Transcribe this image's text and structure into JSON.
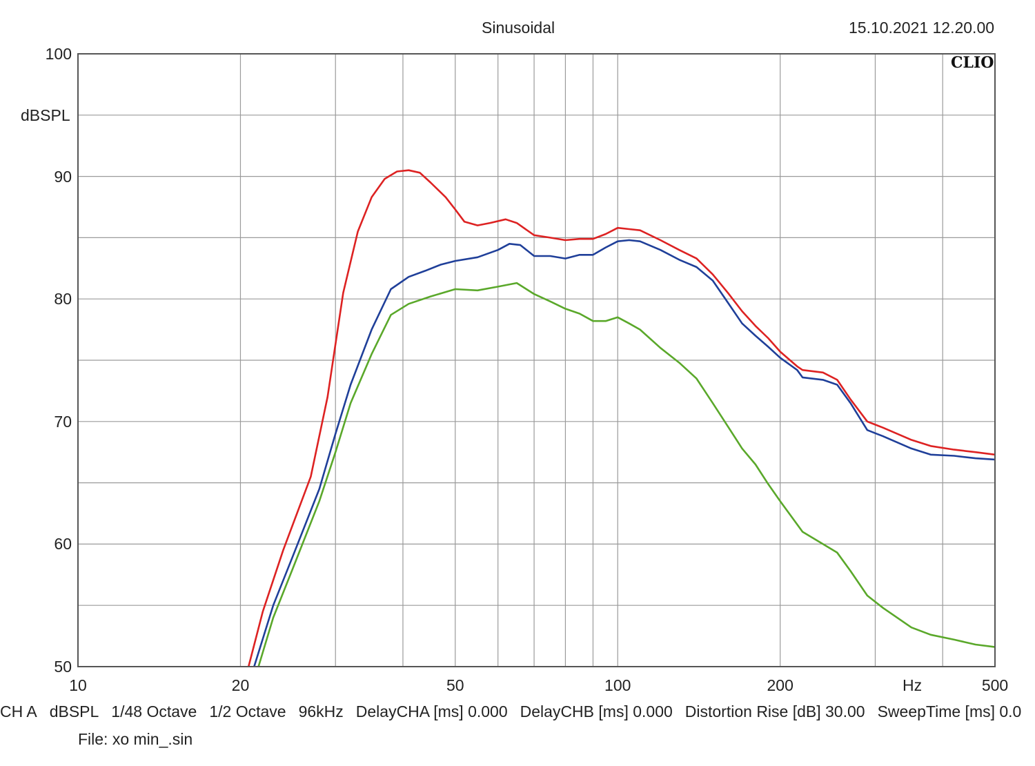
{
  "header": {
    "mode": "Sinusoidal",
    "datetime": "15.10.2021 12.20.00",
    "logo": "CLIO"
  },
  "chart_data": {
    "type": "line",
    "title": "Sinusoidal",
    "xlabel": "Hz",
    "ylabel": "dBSPL",
    "xscale": "log",
    "xlim": [
      10,
      500
    ],
    "ylim": [
      50,
      100
    ],
    "grid": true,
    "x_tick_labels": [
      "10",
      "20",
      "50",
      "100",
      "200",
      "500"
    ],
    "y_tick_labels": [
      "100",
      "90",
      "80",
      "70",
      "60",
      "50"
    ],
    "colors": {
      "red": "#dd2222",
      "blue": "#1f3f99",
      "green": "#5aa82a",
      "grid": "#9a9a9a",
      "frame": "#555555"
    },
    "series": [
      {
        "color": "#dd2222",
        "points": [
          [
            20.7,
            50
          ],
          [
            22,
            54.5
          ],
          [
            24,
            59.5
          ],
          [
            27,
            65.5
          ],
          [
            29,
            72
          ],
          [
            31,
            80.5
          ],
          [
            33,
            85.5
          ],
          [
            35,
            88.3
          ],
          [
            37,
            89.8
          ],
          [
            39,
            90.4
          ],
          [
            41,
            90.5
          ],
          [
            43,
            90.3
          ],
          [
            45,
            89.5
          ],
          [
            48,
            88.3
          ],
          [
            50,
            87.3
          ],
          [
            52,
            86.3
          ],
          [
            55,
            86
          ],
          [
            58,
            86.2
          ],
          [
            62,
            86.5
          ],
          [
            65,
            86.2
          ],
          [
            70,
            85.2
          ],
          [
            75,
            85
          ],
          [
            80,
            84.8
          ],
          [
            85,
            84.9
          ],
          [
            90,
            84.9
          ],
          [
            95,
            85.3
          ],
          [
            100,
            85.8
          ],
          [
            105,
            85.7
          ],
          [
            110,
            85.6
          ],
          [
            120,
            84.8
          ],
          [
            130,
            84
          ],
          [
            140,
            83.3
          ],
          [
            150,
            82
          ],
          [
            160,
            80.5
          ],
          [
            170,
            79
          ],
          [
            180,
            77.8
          ],
          [
            190,
            76.8
          ],
          [
            200,
            75.7
          ],
          [
            215,
            74.5
          ],
          [
            220,
            74.2
          ],
          [
            240,
            74
          ],
          [
            255,
            73.4
          ],
          [
            270,
            71.8
          ],
          [
            290,
            70
          ],
          [
            310,
            69.5
          ],
          [
            350,
            68.5
          ],
          [
            380,
            68
          ],
          [
            420,
            67.7
          ],
          [
            460,
            67.5
          ],
          [
            500,
            67.3
          ]
        ]
      },
      {
        "color": "#1f3f99",
        "points": [
          [
            21.2,
            50
          ],
          [
            23,
            55
          ],
          [
            25,
            59
          ],
          [
            28,
            64.5
          ],
          [
            30,
            69
          ],
          [
            32,
            73
          ],
          [
            35,
            77.5
          ],
          [
            38,
            80.8
          ],
          [
            41,
            81.8
          ],
          [
            44,
            82.3
          ],
          [
            47,
            82.8
          ],
          [
            50,
            83.1
          ],
          [
            55,
            83.4
          ],
          [
            60,
            84
          ],
          [
            63,
            84.5
          ],
          [
            66,
            84.4
          ],
          [
            70,
            83.5
          ],
          [
            75,
            83.5
          ],
          [
            80,
            83.3
          ],
          [
            85,
            83.6
          ],
          [
            90,
            83.6
          ],
          [
            95,
            84.2
          ],
          [
            100,
            84.7
          ],
          [
            105,
            84.8
          ],
          [
            110,
            84.7
          ],
          [
            120,
            84
          ],
          [
            130,
            83.2
          ],
          [
            140,
            82.6
          ],
          [
            150,
            81.5
          ],
          [
            160,
            79.7
          ],
          [
            170,
            78
          ],
          [
            180,
            77
          ],
          [
            190,
            76.1
          ],
          [
            200,
            75.2
          ],
          [
            215,
            74.2
          ],
          [
            220,
            73.6
          ],
          [
            240,
            73.4
          ],
          [
            255,
            73
          ],
          [
            270,
            71.5
          ],
          [
            290,
            69.3
          ],
          [
            310,
            68.8
          ],
          [
            350,
            67.8
          ],
          [
            380,
            67.3
          ],
          [
            420,
            67.2
          ],
          [
            460,
            67
          ],
          [
            500,
            66.9
          ]
        ]
      },
      {
        "color": "#5aa82a",
        "points": [
          [
            21.6,
            50
          ],
          [
            23,
            54
          ],
          [
            25,
            58
          ],
          [
            28,
            63.5
          ],
          [
            30,
            67.5
          ],
          [
            32,
            71.5
          ],
          [
            35,
            75.5
          ],
          [
            38,
            78.7
          ],
          [
            41,
            79.6
          ],
          [
            45,
            80.2
          ],
          [
            50,
            80.8
          ],
          [
            55,
            80.7
          ],
          [
            60,
            81
          ],
          [
            65,
            81.3
          ],
          [
            70,
            80.4
          ],
          [
            75,
            79.8
          ],
          [
            80,
            79.2
          ],
          [
            85,
            78.8
          ],
          [
            90,
            78.2
          ],
          [
            95,
            78.2
          ],
          [
            100,
            78.5
          ],
          [
            105,
            78
          ],
          [
            110,
            77.5
          ],
          [
            120,
            76
          ],
          [
            130,
            74.8
          ],
          [
            140,
            73.5
          ],
          [
            150,
            71.5
          ],
          [
            160,
            69.6
          ],
          [
            170,
            67.8
          ],
          [
            180,
            66.5
          ],
          [
            190,
            64.9
          ],
          [
            200,
            63.5
          ],
          [
            220,
            61
          ],
          [
            240,
            60
          ],
          [
            255,
            59.3
          ],
          [
            270,
            57.8
          ],
          [
            290,
            55.8
          ],
          [
            310,
            54.8
          ],
          [
            350,
            53.2
          ],
          [
            380,
            52.6
          ],
          [
            420,
            52.2
          ],
          [
            460,
            51.8
          ],
          [
            500,
            51.6
          ]
        ]
      }
    ]
  },
  "footer": {
    "info": [
      "CH A",
      "dBSPL",
      "1/48 Octave",
      "1/2 Octave",
      "96kHz",
      "DelayCHA [ms] 0.000",
      "DelayCHB [ms] 0.000",
      "Distortion Rise [dB] 30.00",
      "SweepTime [ms] 0.0"
    ],
    "file": "File: xo min_.sin"
  }
}
